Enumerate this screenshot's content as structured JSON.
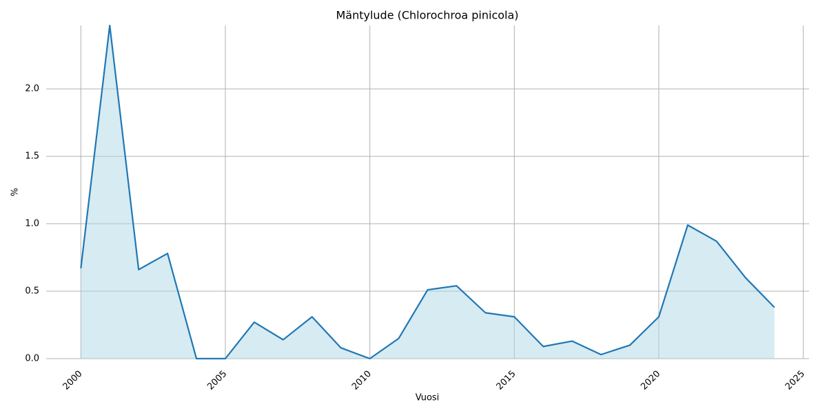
{
  "chart_data": {
    "type": "area",
    "title": "Mäntylude (Chlorochroa pinicola)",
    "x_label": "Vuosi",
    "y_label": "%",
    "x": [
      2000,
      2001,
      2002,
      2003,
      2004,
      2005,
      2006,
      2007,
      2008,
      2009,
      2010,
      2011,
      2012,
      2013,
      2014,
      2015,
      2016,
      2017,
      2018,
      2019,
      2020,
      2021,
      2022,
      2023,
      2024
    ],
    "series": [
      {
        "color": "#1f77b4",
        "fill_color": "#add8e6",
        "values": [
          0.67,
          2.47,
          0.66,
          0.78,
          0,
          0,
          0.27,
          0.14,
          0.31,
          0.08,
          0,
          0.15,
          0.51,
          0.54,
          0.34,
          0.31,
          0.09,
          0.13,
          0.03,
          0.1,
          0.31,
          0.99,
          0.87,
          0.6,
          0.38
        ]
      }
    ],
    "xlim": [
      1998.8,
      2025.2
    ],
    "ylim": [
      0,
      2.47
    ],
    "xticks": [
      2000,
      2005,
      2010,
      2015,
      2020,
      2025
    ],
    "yticks": [
      {
        "value": 0,
        "label": "0.0"
      },
      0.5,
      {
        "value": 1,
        "label": "1.0"
      },
      1.5,
      {
        "value": 2,
        "label": "2.0"
      }
    ],
    "grid": true
  }
}
